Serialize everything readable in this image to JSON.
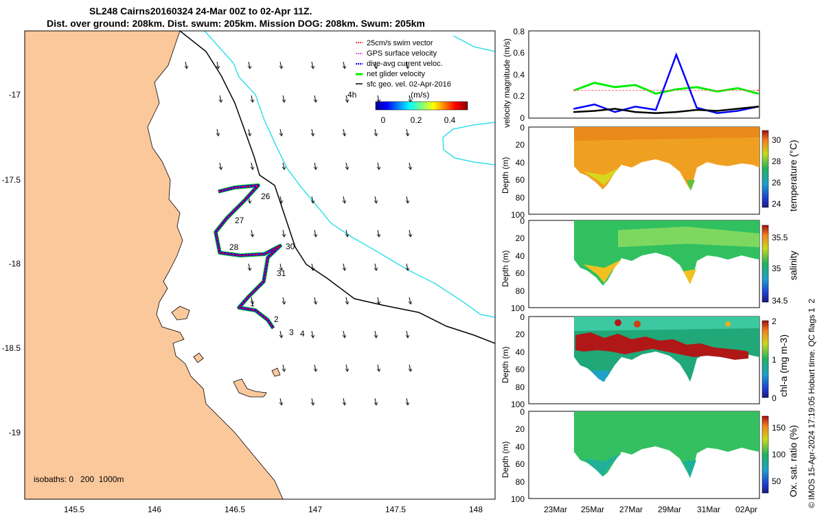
{
  "title": {
    "line1": "SL248 Cairns20160324 24-Mar 00Z to 02-Apr 11Z.",
    "line2": "Dist. over ground: 208km. Dist. swum: 205km. Mission DOG: 208km. Swum: 205km"
  },
  "colors": {
    "land": "#fbc89c",
    "sea": "#ffffff",
    "coast_line": "#000000",
    "isobath_200": "#000000",
    "isobath_1000": "#33e0e8",
    "swim_vector": "#ff0000",
    "gps_velocity": "#cc33cc",
    "dive_avg": "#0000ff",
    "net_glider": "#00ee00",
    "sfc_geo": "#000000"
  },
  "map": {
    "xticks": [
      "145.5",
      "146",
      "146.5",
      "147",
      "147.5",
      "148"
    ],
    "yticks": [
      "-17",
      "-17.5",
      "-18",
      "-18.5",
      "-19"
    ],
    "isobaths_label": "isobaths: 0   200  1000m",
    "scale_time_label": "4h",
    "colorbar_unit": "(m/s)",
    "colorbar_ticks": [
      "0",
      "0.2",
      "0.4"
    ],
    "legend": [
      "25cm/s swim vector",
      "GPS surface velocity",
      "dive-avg current veloc.",
      "net glider velocity",
      "sfc geo. vel. 02-Apr-2016"
    ],
    "day_labels": [
      "26",
      "27",
      "28",
      "30",
      "31",
      "1",
      "2",
      "3",
      "4"
    ]
  },
  "chart_data": [
    {
      "type": "line",
      "ylabel": "velocity magnitude (m/s)",
      "ylim": [
        0,
        0.8
      ],
      "yticks": [
        "0",
        "0.2",
        "0.4",
        "0.6",
        "0.8"
      ],
      "x_ticks": [
        "23Mar",
        "25Mar",
        "27Mar",
        "29Mar",
        "31Mar",
        "02Apr"
      ],
      "series": [
        {
          "name": "net glider velocity",
          "color": "#00ee00",
          "x": [
            "24-Mar",
            "25-Mar",
            "26-Mar",
            "27-Mar",
            "28-Mar",
            "29-Mar",
            "30-Mar",
            "31-Mar",
            "01-Apr",
            "02-Apr"
          ],
          "values": [
            0.25,
            0.32,
            0.28,
            0.3,
            0.22,
            0.26,
            0.28,
            0.24,
            0.27,
            0.22
          ]
        },
        {
          "name": "dive-avg current veloc.",
          "color": "#0000ff",
          "x": [
            "24-Mar",
            "25-Mar",
            "26-Mar",
            "27-Mar",
            "28-Mar",
            "29-Mar",
            "30-Mar",
            "31-Mar",
            "01-Apr",
            "02-Apr"
          ],
          "values": [
            0.08,
            0.12,
            0.05,
            0.1,
            0.07,
            0.58,
            0.09,
            0.04,
            0.06,
            0.1
          ]
        },
        {
          "name": "sfc geo. vel.",
          "color": "#000000",
          "x": [
            "24-Mar",
            "25-Mar",
            "26-Mar",
            "27-Mar",
            "28-Mar",
            "29-Mar",
            "30-Mar",
            "31-Mar",
            "01-Apr",
            "02-Apr"
          ],
          "values": [
            0.05,
            0.06,
            0.08,
            0.05,
            0.04,
            0.05,
            0.07,
            0.06,
            0.08,
            0.1
          ]
        },
        {
          "name": "25cm/s swim vector",
          "color": "#ff6666",
          "x": [
            "24-Mar",
            "02-Apr"
          ],
          "values": [
            0.25,
            0.25
          ]
        }
      ]
    },
    {
      "type": "heatmap",
      "ylabel": "Depth (m)",
      "colorbar_label": "temperature (°C)",
      "yticks": [
        "0",
        "20",
        "40",
        "60",
        "80",
        "100"
      ],
      "colorbar_ticks": [
        "24",
        "26",
        "28",
        "30"
      ],
      "x_ticks": [
        "23Mar",
        "25Mar",
        "27Mar",
        "29Mar",
        "31Mar",
        "02Apr"
      ]
    },
    {
      "type": "heatmap",
      "ylabel": "Depth (m)",
      "colorbar_label": "salinity",
      "yticks": [
        "0",
        "20",
        "40",
        "60",
        "80",
        "100"
      ],
      "colorbar_ticks": [
        "34.5",
        "35",
        "35.5"
      ],
      "x_ticks": [
        "23Mar",
        "25Mar",
        "27Mar",
        "29Mar",
        "31Mar",
        "02Apr"
      ]
    },
    {
      "type": "heatmap",
      "ylabel": "Depth (m)",
      "colorbar_label": "chl-a (mg m-3)",
      "yticks": [
        "0",
        "20",
        "40",
        "60",
        "80",
        "100"
      ],
      "colorbar_ticks": [
        "0",
        "1",
        "2"
      ],
      "x_ticks": [
        "23Mar",
        "25Mar",
        "27Mar",
        "29Mar",
        "31Mar",
        "02Apr"
      ]
    },
    {
      "type": "heatmap",
      "ylabel": "Depth (m)",
      "colorbar_label": "Ox. sat. ratio (%)",
      "yticks": [
        "0",
        "20",
        "40",
        "60",
        "80",
        "100"
      ],
      "colorbar_ticks": [
        "50",
        "100",
        "150"
      ],
      "x_ticks": [
        "23Mar",
        "25Mar",
        "27Mar",
        "29Mar",
        "31Mar",
        "02Apr"
      ]
    }
  ],
  "footer": "© IMOS 15-Apr-2024 17:19:05 Hobart time. QC flags 1  2"
}
